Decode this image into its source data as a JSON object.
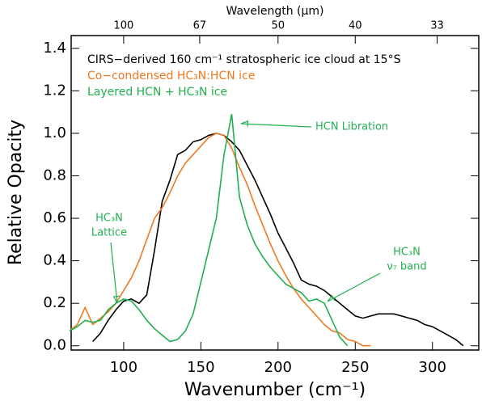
{
  "chart_data": {
    "type": "line",
    "xlabel": "Wavenumber (cm⁻¹)",
    "ylabel": "Relative Opacity",
    "x2label": "Wavelength (μm)",
    "x": [
      65,
      70,
      75,
      80,
      85,
      90,
      95,
      100,
      105,
      110,
      115,
      120,
      125,
      130,
      135,
      140,
      145,
      150,
      155,
      160,
      165,
      170,
      175,
      180,
      185,
      190,
      195,
      200,
      205,
      210,
      215,
      220,
      225,
      230,
      235,
      240,
      245,
      250,
      255,
      260,
      265,
      270,
      275,
      280,
      285,
      290,
      295,
      300,
      305,
      310,
      315,
      320,
      325,
      330
    ],
    "series": [
      {
        "name": "CIRS−derived 160 cm⁻¹ stratospheric ice cloud at 15°S",
        "color": "#000000",
        "values": [
          null,
          null,
          null,
          0.02,
          0.06,
          0.12,
          0.17,
          0.21,
          0.22,
          0.2,
          0.24,
          0.45,
          0.68,
          0.78,
          0.9,
          0.92,
          0.96,
          0.97,
          0.99,
          1.0,
          0.99,
          0.96,
          0.92,
          0.85,
          0.78,
          0.7,
          0.62,
          0.53,
          0.46,
          0.39,
          0.31,
          0.29,
          0.28,
          0.26,
          0.23,
          0.2,
          0.17,
          0.14,
          0.13,
          0.14,
          0.15,
          0.15,
          0.15,
          0.14,
          0.13,
          0.12,
          0.1,
          0.09,
          0.07,
          0.05,
          0.03,
          0.0,
          null,
          null
        ]
      },
      {
        "name": "Co−condensed HC₃N:HCN ice",
        "color": "#f07820",
        "values": [
          0.07,
          0.1,
          0.18,
          0.1,
          0.13,
          0.16,
          0.2,
          0.26,
          0.32,
          0.4,
          0.5,
          0.6,
          0.65,
          0.72,
          0.8,
          0.86,
          0.9,
          0.94,
          0.98,
          1.0,
          0.99,
          0.93,
          0.84,
          0.76,
          0.66,
          0.57,
          0.48,
          0.4,
          0.33,
          0.27,
          0.22,
          0.18,
          0.14,
          0.1,
          0.07,
          0.06,
          0.03,
          0.02,
          0.0,
          0.0,
          null,
          null,
          null,
          null,
          null,
          null,
          null,
          null,
          null,
          null,
          null,
          null,
          null,
          null
        ]
      },
      {
        "name": "Layered HCN + HC₃N ice",
        "color": "#20b050",
        "values": [
          0.07,
          0.09,
          0.12,
          0.11,
          0.12,
          0.17,
          0.2,
          0.22,
          0.21,
          0.17,
          0.12,
          0.08,
          0.05,
          0.02,
          0.03,
          0.07,
          0.15,
          0.3,
          0.45,
          0.6,
          0.9,
          1.09,
          0.7,
          0.57,
          0.48,
          0.42,
          0.37,
          0.33,
          0.29,
          0.27,
          0.25,
          0.21,
          0.22,
          0.2,
          0.12,
          0.04,
          0.0,
          null,
          null,
          null,
          null,
          null,
          null,
          null,
          null,
          null,
          null,
          null,
          null,
          null,
          null,
          null,
          null,
          null
        ]
      }
    ],
    "xlim": [
      66,
      330
    ],
    "xticks": [
      100,
      150,
      200,
      250,
      300
    ],
    "x2ticks": [
      {
        "value": 100,
        "label": "100"
      },
      {
        "value": 149.25,
        "label": "67"
      },
      {
        "value": 200,
        "label": "50"
      },
      {
        "value": 250,
        "label": "40"
      },
      {
        "value": 303.03,
        "label": "33"
      }
    ],
    "ylim": [
      -0.02,
      1.46
    ],
    "yticks": [
      {
        "value": 0,
        "label": "0.0"
      },
      {
        "value": 0.2,
        "label": "0.2"
      },
      {
        "value": 0.4,
        "label": "0.4"
      },
      {
        "value": 0.6,
        "label": "0.6"
      },
      {
        "value": 0.8,
        "label": "0.8"
      },
      {
        "value": 1.0,
        "label": "1.0"
      },
      {
        "value": 1.2,
        "label": "1.2"
      },
      {
        "value": 1.4,
        "label": "1.4"
      }
    ],
    "annotations": [
      [
        "HCN Libration"
      ],
      [
        "HC₃N",
        "Lattice"
      ],
      [
        "HC₃N",
        "ν₇ band"
      ]
    ],
    "legend": "upper left"
  }
}
